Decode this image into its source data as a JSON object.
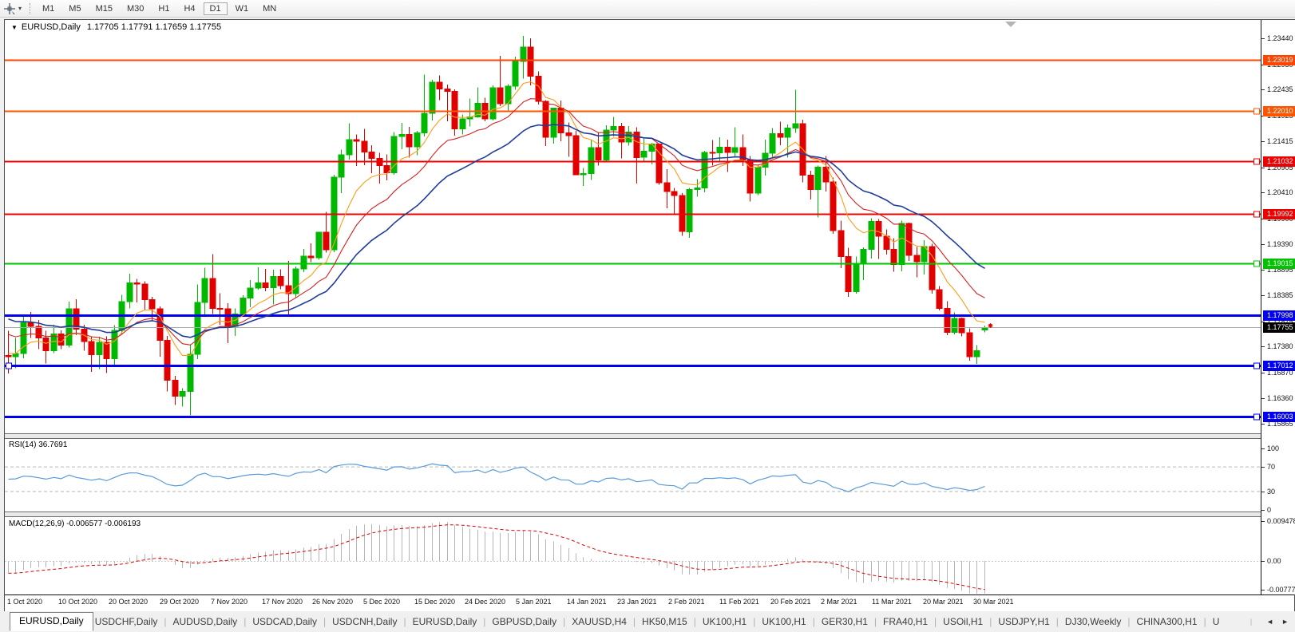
{
  "toolbar": {
    "timeframes": [
      "M1",
      "M5",
      "M15",
      "M30",
      "H1",
      "H4",
      "D1",
      "W1",
      "MN"
    ],
    "active_timeframe": "D1",
    "cursor_tool": "crosshair"
  },
  "window": {
    "title_symbol": "EURUSD,Daily",
    "title_quotes": "1.17705 1.17791 1.17659 1.17755"
  },
  "panes": {
    "rsi_label": "RSI(14) 36.7691",
    "macd_label": "MACD(12,26,9) -0.006577 -0.006193"
  },
  "price_axis": {
    "ticks": [
      "1.23440",
      "1.22930",
      "1.22435",
      "1.21925",
      "1.21415",
      "1.20905",
      "1.20410",
      "1.19900",
      "1.19390",
      "1.18895",
      "1.18385",
      "1.17875",
      "1.17380",
      "1.16870",
      "1.16360",
      "1.15865"
    ],
    "current": {
      "label": "1.17755",
      "price": 1.17755,
      "bg": "#000000"
    }
  },
  "rsi_axis": [
    "100",
    "70",
    "30",
    "0"
  ],
  "macd_axis": [
    "0.009478",
    "0.00",
    "-0.00777"
  ],
  "x_axis": {
    "dates": [
      "1 Oct 2020",
      "10 Oct 2020",
      "20 Oct 2020",
      "29 Oct 2020",
      "7 Nov 2020",
      "17 Nov 2020",
      "26 Nov 2020",
      "5 Dec 2020",
      "15 Dec 2020",
      "24 Dec 2020",
      "5 Jan 2021",
      "14 Jan 2021",
      "23 Jan 2021",
      "2 Feb 2021",
      "11 Feb 2021",
      "20 Feb 2021",
      "2 Mar 2021",
      "11 Mar 2021",
      "20 Mar 2021",
      "30 Mar 2021"
    ]
  },
  "tabs": {
    "items": [
      "EURUSD,Daily",
      "USDCHF,Daily",
      "AUDUSD,Daily",
      "USDCAD,Daily",
      "USDCNH,Daily",
      "EURUSD,Daily",
      "GBPUSD,Daily",
      "XAUUSD,H4",
      "HK50,M15",
      "UK100,H1",
      "UK100,H1",
      "GER30,H1",
      "FRA40,H1",
      "USOil,H1",
      "USDJPY,H1",
      "DJ30,Weekly",
      "CHINA300,H1",
      "U"
    ],
    "active_index": 0,
    "scroll_left": "◄",
    "scroll_right": "►"
  },
  "chart_data": {
    "type": "candlestick",
    "symbol": "EURUSD",
    "timeframe": "Daily",
    "colors": {
      "bull": "#00b800",
      "bear": "#e00000",
      "ma_fast": "#ff9d1c",
      "ma_mid": "#d22222",
      "ma_slow": "#1f3d9b",
      "rsi": "#5b9bd5",
      "macd_hist": "#b6b6b6",
      "macd_signal": "#dd0000",
      "current_line": "#a8a8a8"
    },
    "indicators": {
      "ma": [
        {
          "period": 8,
          "color": "#ff9d1c",
          "seed": 1.1726,
          "width": 1.1
        },
        {
          "period": 15,
          "color": "#d22222",
          "seed": 1.1768,
          "width": 1.1
        },
        {
          "period": 26,
          "color": "#1f3d9b",
          "seed": 1.1798,
          "width": 1.6
        }
      ],
      "rsi": {
        "period": 14,
        "value": 36.7691,
        "levels": [
          70,
          30
        ]
      },
      "macd": {
        "fast": 12,
        "slow": 26,
        "signal": 9,
        "value": -0.006577,
        "signal_value": -0.006193
      }
    },
    "hlines": [
      {
        "price": 1.23019,
        "label": "1.23019",
        "color": "#ff4500",
        "width": 2,
        "handle": false,
        "left_handle": false
      },
      {
        "price": 1.2201,
        "label": "1.22010",
        "color": "#ff5400",
        "width": 2,
        "handle": true,
        "left_handle": false
      },
      {
        "price": 1.21032,
        "label": "1.21032",
        "color": "#ee0000",
        "width": 2,
        "handle": true,
        "left_handle": false
      },
      {
        "price": 1.19992,
        "label": "1.19992",
        "color": "#ee0000",
        "width": 2,
        "handle": true,
        "left_handle": false
      },
      {
        "price": 1.19015,
        "label": "1.19015",
        "color": "#00c300",
        "width": 2,
        "handle": true,
        "left_handle": false
      },
      {
        "price": 1.17998,
        "label": "1.17998",
        "color": "#0000ee",
        "width": 3,
        "handle": false,
        "left_handle": false
      },
      {
        "price": 1.17012,
        "label": "1.17012",
        "color": "#0000ee",
        "width": 3,
        "handle": true,
        "left_handle": true
      },
      {
        "price": 1.16003,
        "label": "1.16003",
        "color": "#0000ee",
        "width": 3,
        "handle": true,
        "left_handle": false
      }
    ],
    "current_price": 1.17755,
    "ohlc": [
      [
        1.172,
        1.1769,
        1.1685,
        1.1718
      ],
      [
        1.1718,
        1.1755,
        1.1695,
        1.1724
      ],
      [
        1.1724,
        1.1797,
        1.1715,
        1.1785
      ],
      [
        1.1785,
        1.1806,
        1.1755,
        1.1778
      ],
      [
        1.1778,
        1.179,
        1.1733,
        1.1755
      ],
      [
        1.1755,
        1.1769,
        1.1705,
        1.173
      ],
      [
        1.173,
        1.1781,
        1.1725,
        1.1763
      ],
      [
        1.1763,
        1.177,
        1.1733,
        1.1741
      ],
      [
        1.1741,
        1.1826,
        1.1736,
        1.1812
      ],
      [
        1.1812,
        1.1831,
        1.176,
        1.1772
      ],
      [
        1.1772,
        1.1781,
        1.173,
        1.1748
      ],
      [
        1.1748,
        1.1758,
        1.1688,
        1.1722
      ],
      [
        1.1722,
        1.1757,
        1.1694,
        1.1746
      ],
      [
        1.1746,
        1.1758,
        1.1686,
        1.1714
      ],
      [
        1.1714,
        1.178,
        1.1702,
        1.177
      ],
      [
        1.177,
        1.184,
        1.1761,
        1.1826
      ],
      [
        1.1826,
        1.1881,
        1.1813,
        1.1863
      ],
      [
        1.1863,
        1.1871,
        1.1825,
        1.1861
      ],
      [
        1.1861,
        1.1866,
        1.1811,
        1.183
      ],
      [
        1.183,
        1.1836,
        1.1787,
        1.1812
      ],
      [
        1.1812,
        1.1817,
        1.1718,
        1.175
      ],
      [
        1.175,
        1.1759,
        1.165,
        1.1672
      ],
      [
        1.1672,
        1.168,
        1.1623,
        1.164
      ],
      [
        1.164,
        1.1656,
        1.162,
        1.165
      ],
      [
        1.165,
        1.1742,
        1.1603,
        1.1723
      ],
      [
        1.1723,
        1.186,
        1.1713,
        1.1825
      ],
      [
        1.1825,
        1.1893,
        1.18,
        1.1872
      ],
      [
        1.1872,
        1.192,
        1.1802,
        1.1813
      ],
      [
        1.1813,
        1.1843,
        1.1781,
        1.1812
      ],
      [
        1.1812,
        1.1823,
        1.1745,
        1.1778
      ],
      [
        1.1778,
        1.1813,
        1.1759,
        1.1802
      ],
      [
        1.1802,
        1.1839,
        1.1799,
        1.1833
      ],
      [
        1.1833,
        1.1869,
        1.1815,
        1.1853
      ],
      [
        1.1853,
        1.1894,
        1.185,
        1.1863
      ],
      [
        1.1863,
        1.1891,
        1.1847,
        1.1854
      ],
      [
        1.1854,
        1.1889,
        1.1821,
        1.1876
      ],
      [
        1.1876,
        1.189,
        1.1851,
        1.1858
      ],
      [
        1.1858,
        1.1906,
        1.18,
        1.1842
      ],
      [
        1.1842,
        1.1895,
        1.1833,
        1.1891
      ],
      [
        1.1891,
        1.193,
        1.1884,
        1.1916
      ],
      [
        1.1916,
        1.1941,
        1.1904,
        1.1913
      ],
      [
        1.1913,
        1.1964,
        1.1909,
        1.1963
      ],
      [
        1.1963,
        1.2003,
        1.1923,
        1.1928
      ],
      [
        1.1928,
        1.2076,
        1.1924,
        1.2071
      ],
      [
        1.2071,
        1.2125,
        1.204,
        1.2115
      ],
      [
        1.2115,
        1.2177,
        1.2106,
        1.2145
      ],
      [
        1.2145,
        1.2155,
        1.2093,
        1.2142
      ],
      [
        1.2142,
        1.2166,
        1.2095,
        1.2121
      ],
      [
        1.2121,
        1.2134,
        1.2079,
        1.2108
      ],
      [
        1.2108,
        1.2119,
        1.2059,
        1.2094
      ],
      [
        1.2094,
        1.2116,
        1.2065,
        1.208
      ],
      [
        1.208,
        1.216,
        1.2076,
        1.2151
      ],
      [
        1.2151,
        1.2178,
        1.2126,
        1.2155
      ],
      [
        1.2155,
        1.217,
        1.211,
        1.2131
      ],
      [
        1.2131,
        1.2162,
        1.2114,
        1.2158
      ],
      [
        1.2158,
        1.2273,
        1.2151,
        1.2197
      ],
      [
        1.2197,
        1.2263,
        1.2183,
        1.2258
      ],
      [
        1.2258,
        1.2271,
        1.2223,
        1.2245
      ],
      [
        1.2245,
        1.2253,
        1.2181,
        1.224
      ],
      [
        1.224,
        1.2244,
        1.2153,
        1.2166
      ],
      [
        1.2166,
        1.2194,
        1.2155,
        1.2186
      ],
      [
        1.2186,
        1.2226,
        1.2171,
        1.219
      ],
      [
        1.219,
        1.2248,
        1.2188,
        1.2216
      ],
      [
        1.2216,
        1.2227,
        1.2181,
        1.2186
      ],
      [
        1.2186,
        1.2252,
        1.2183,
        1.2247
      ],
      [
        1.2247,
        1.231,
        1.2211,
        1.2216
      ],
      [
        1.2216,
        1.2254,
        1.22,
        1.225
      ],
      [
        1.225,
        1.2308,
        1.2243,
        1.2299
      ],
      [
        1.2299,
        1.2349,
        1.2265,
        1.2327
      ],
      [
        1.2327,
        1.2344,
        1.2252,
        1.227
      ],
      [
        1.227,
        1.2279,
        1.2214,
        1.222
      ],
      [
        1.222,
        1.2223,
        1.2132,
        1.215
      ],
      [
        1.215,
        1.2208,
        1.2137,
        1.2207
      ],
      [
        1.2207,
        1.2222,
        1.2142,
        1.2158
      ],
      [
        1.2158,
        1.2179,
        1.2111,
        1.2153
      ],
      [
        1.2153,
        1.2162,
        1.2075,
        1.2076
      ],
      [
        1.2076,
        1.2089,
        1.2054,
        1.2078
      ],
      [
        1.2078,
        1.2144,
        1.2066,
        1.2129
      ],
      [
        1.2129,
        1.2158,
        1.2094,
        1.2105
      ],
      [
        1.2105,
        1.2173,
        1.2101,
        1.2164
      ],
      [
        1.2164,
        1.219,
        1.2151,
        1.2171
      ],
      [
        1.2171,
        1.2178,
        1.2108,
        1.214
      ],
      [
        1.214,
        1.2172,
        1.2133,
        1.216
      ],
      [
        1.216,
        1.2169,
        1.2059,
        1.211
      ],
      [
        1.211,
        1.2148,
        1.2101,
        1.2122
      ],
      [
        1.2122,
        1.2139,
        1.2096,
        1.2136
      ],
      [
        1.2136,
        1.2137,
        1.2056,
        1.206
      ],
      [
        1.206,
        1.2087,
        1.201,
        1.2043
      ],
      [
        1.2043,
        1.205,
        1.1999,
        1.2035
      ],
      [
        1.2035,
        1.204,
        1.1956,
        1.1964
      ],
      [
        1.1964,
        1.205,
        1.1952,
        1.2047
      ],
      [
        1.2047,
        1.2067,
        1.2033,
        1.205
      ],
      [
        1.205,
        1.2123,
        1.2041,
        1.212
      ],
      [
        1.212,
        1.2144,
        1.2094,
        1.2119
      ],
      [
        1.2119,
        1.215,
        1.2103,
        1.213
      ],
      [
        1.213,
        1.2145,
        1.2081,
        1.212
      ],
      [
        1.212,
        1.2169,
        1.211,
        1.2129
      ],
      [
        1.2129,
        1.2155,
        1.2093,
        1.2105
      ],
      [
        1.2105,
        1.2113,
        1.2023,
        1.204
      ],
      [
        1.204,
        1.2095,
        1.2036,
        1.2091
      ],
      [
        1.2091,
        1.2145,
        1.2074,
        1.2118
      ],
      [
        1.2118,
        1.2168,
        1.2109,
        1.2157
      ],
      [
        1.2157,
        1.218,
        1.2134,
        1.215
      ],
      [
        1.215,
        1.2175,
        1.211,
        1.2168
      ],
      [
        1.2168,
        1.2243,
        1.2158,
        1.2176
      ],
      [
        1.2176,
        1.2184,
        1.2061,
        1.2075
      ],
      [
        1.2075,
        1.2084,
        1.2027,
        1.2047
      ],
      [
        1.2047,
        1.2094,
        1.1992,
        1.2091
      ],
      [
        1.2091,
        1.2113,
        1.2043,
        1.2062
      ],
      [
        1.2062,
        1.207,
        1.196,
        1.1966
      ],
      [
        1.1966,
        1.1986,
        1.1892,
        1.1915
      ],
      [
        1.1915,
        1.1932,
        1.1836,
        1.1846
      ],
      [
        1.1846,
        1.1915,
        1.1842,
        1.19
      ],
      [
        1.19,
        1.1933,
        1.1869,
        1.1929
      ],
      [
        1.1929,
        1.199,
        1.1911,
        1.1984
      ],
      [
        1.1984,
        1.1989,
        1.191,
        1.1955
      ],
      [
        1.1955,
        1.1968,
        1.1919,
        1.1929
      ],
      [
        1.1929,
        1.1951,
        1.1885,
        1.1899
      ],
      [
        1.1899,
        1.1986,
        1.1886,
        1.198
      ],
      [
        1.198,
        1.1982,
        1.1906,
        1.1917
      ],
      [
        1.1917,
        1.1934,
        1.1874,
        1.1905
      ],
      [
        1.1905,
        1.1947,
        1.188,
        1.1935
      ],
      [
        1.1935,
        1.194,
        1.1842,
        1.185
      ],
      [
        1.185,
        1.1857,
        1.1809,
        1.1813
      ],
      [
        1.1813,
        1.1827,
        1.176,
        1.1766
      ],
      [
        1.1766,
        1.1805,
        1.1762,
        1.1793
      ],
      [
        1.1793,
        1.1795,
        1.1758,
        1.1765
      ],
      [
        1.1765,
        1.1774,
        1.171,
        1.1718
      ],
      [
        1.1718,
        1.1741,
        1.1704,
        1.173
      ],
      [
        1.17705,
        1.17791,
        1.17659,
        1.17755
      ]
    ]
  }
}
